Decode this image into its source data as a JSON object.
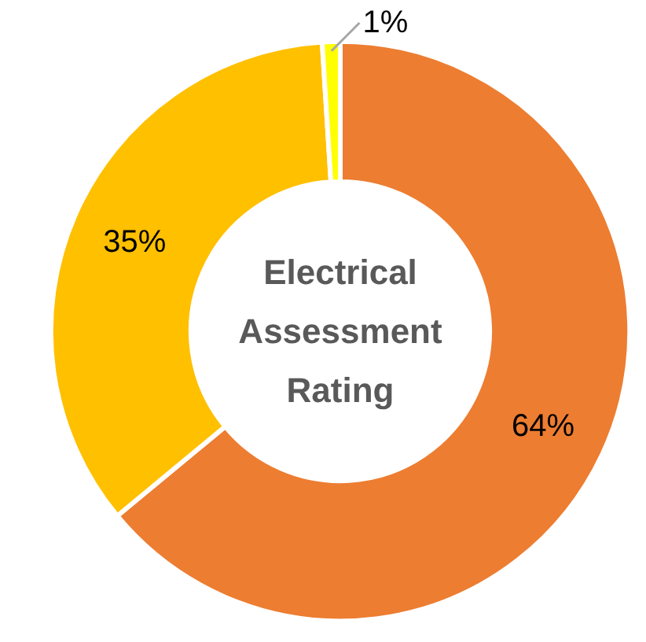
{
  "chart_data": {
    "type": "donut",
    "title": "Electrical Assessment Rating",
    "categories": [
      null,
      null,
      null
    ],
    "values": [
      64,
      35,
      1
    ],
    "colors": [
      "#ed7d31",
      "#ffc000",
      "#ffff00"
    ],
    "value_labels": [
      "64%",
      "35%",
      "1%"
    ]
  }
}
